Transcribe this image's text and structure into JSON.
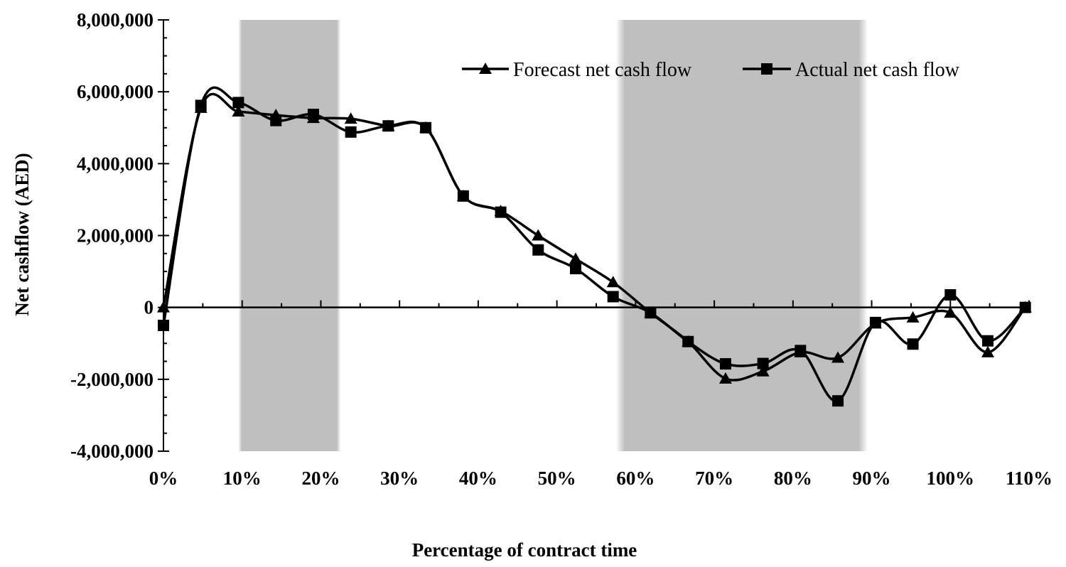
{
  "chart_data": {
    "type": "line",
    "xlabel": "Percentage of contract time",
    "ylabel": "Net cashflow (AED)",
    "xlim": [
      0,
      110
    ],
    "ylim": [
      -4000000,
      8000000
    ],
    "x_ticks": [
      0,
      10,
      20,
      30,
      40,
      50,
      60,
      70,
      80,
      90,
      100,
      110
    ],
    "x_tick_labels": [
      "0%",
      "10%",
      "20%",
      "30%",
      "40%",
      "50%",
      "60%",
      "70%",
      "80%",
      "90%",
      "100%",
      "110%"
    ],
    "y_ticks": [
      -4000000,
      -2000000,
      0,
      2000000,
      4000000,
      6000000,
      8000000
    ],
    "y_tick_labels": [
      "-4,000,000",
      "-2,000,000",
      "0",
      "2,000,000",
      "4,000,000",
      "6,000,000",
      "8,000,000"
    ],
    "shaded_regions": [
      [
        9.5,
        22.5
      ],
      [
        57.5,
        89.5
      ]
    ],
    "legend_position": "top-right",
    "series": [
      {
        "name": "Forecast net cash flow",
        "marker": "triangle",
        "x": [
          0,
          4.76,
          9.52,
          14.29,
          19.05,
          23.81,
          28.57,
          33.33,
          38.1,
          42.86,
          47.62,
          52.38,
          57.14,
          61.9,
          66.67,
          71.43,
          76.19,
          80.95,
          85.71,
          90.48,
          95.24,
          100,
          104.76,
          109.52
        ],
        "values": [
          0,
          5550000,
          5450000,
          5350000,
          5270000,
          5250000,
          5050000,
          5000000,
          3100000,
          2680000,
          2000000,
          1350000,
          700000,
          -150000,
          -950000,
          -1980000,
          -1780000,
          -1250000,
          -1400000,
          -450000,
          -280000,
          -150000,
          -1250000,
          0
        ]
      },
      {
        "name": "Actual net cash flow",
        "marker": "square",
        "x": [
          0,
          4.76,
          9.52,
          14.29,
          19.05,
          23.81,
          28.57,
          33.33,
          38.1,
          42.86,
          47.62,
          52.38,
          57.14,
          61.9,
          66.67,
          71.43,
          76.19,
          80.95,
          85.71,
          90.48,
          95.24,
          100,
          104.76,
          109.52
        ],
        "values": [
          -500000,
          5620000,
          5700000,
          5200000,
          5370000,
          4880000,
          5050000,
          5000000,
          3100000,
          2650000,
          1600000,
          1080000,
          300000,
          -150000,
          -950000,
          -1570000,
          -1560000,
          -1200000,
          -2600000,
          -420000,
          -1020000,
          350000,
          -930000,
          0
        ]
      }
    ]
  }
}
